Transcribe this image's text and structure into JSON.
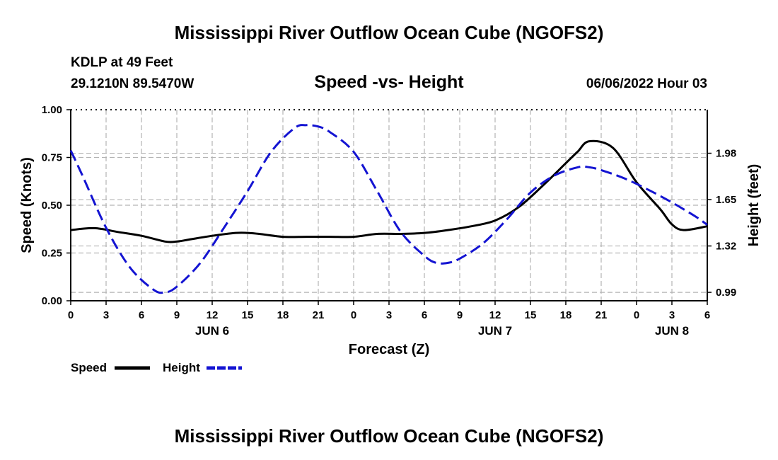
{
  "header": {
    "title": "Mississippi River Outflow Ocean Cube (NGOFS2)",
    "station": "KDLP at 49 Feet",
    "coords": "29.1210N  89.5470W",
    "date": "06/06/2022 Hour 03"
  },
  "footer": {
    "title": "Mississippi River Outflow Ocean Cube (NGOFS2)"
  },
  "chart_data": {
    "type": "line",
    "title": "Speed -vs- Height",
    "xlabel": "Forecast (Z)",
    "ylabel": "Speed (Knots)",
    "y2label": "Height (feet)",
    "x_range": [
      0,
      54
    ],
    "x_hours": [
      0,
      3,
      6,
      9,
      12,
      15,
      18,
      21,
      24,
      27,
      30,
      33,
      36,
      39,
      42,
      45,
      48,
      51,
      54
    ],
    "x_tick_labels": [
      "0",
      "3",
      "6",
      "9",
      "12",
      "15",
      "18",
      "21",
      "0",
      "3",
      "6",
      "9",
      "12",
      "15",
      "18",
      "21",
      "0",
      "3",
      "6"
    ],
    "date_labels": [
      {
        "hour": 12,
        "label": "JUN 6"
      },
      {
        "hour": 36,
        "label": "JUN 7"
      },
      {
        "hour": 51,
        "label": "JUN 8"
      }
    ],
    "ylim": [
      0,
      1
    ],
    "y_ticks": [
      0,
      0.25,
      0.5,
      0.75,
      1
    ],
    "y_tick_labels": [
      "0.00",
      "0.25",
      "0.50",
      "0.75",
      "1.00"
    ],
    "y2lim": [
      0.93,
      2.29
    ],
    "y2_ticks": [
      0.99,
      1.32,
      1.65,
      1.98
    ],
    "y2_tick_labels": [
      "0.99",
      "1.32",
      "1.65",
      "1.98"
    ],
    "series": [
      {
        "name": "Speed",
        "axis": "left",
        "color": "#000000",
        "dash": "solid",
        "x": [
          0,
          2,
          4,
          6,
          8,
          9,
          10,
          12,
          14,
          15,
          16,
          18,
          20,
          22,
          24,
          26,
          28,
          30,
          32,
          34,
          36,
          38,
          40,
          42,
          43,
          44,
          46,
          48,
          50,
          51,
          52,
          54
        ],
        "y": [
          0.37,
          0.38,
          0.36,
          0.34,
          0.31,
          0.31,
          0.32,
          0.34,
          0.355,
          0.355,
          0.35,
          0.335,
          0.335,
          0.335,
          0.335,
          0.35,
          0.35,
          0.355,
          0.37,
          0.39,
          0.42,
          0.49,
          0.6,
          0.72,
          0.78,
          0.835,
          0.8,
          0.62,
          0.48,
          0.4,
          0.37,
          0.39
        ]
      },
      {
        "name": "Height",
        "axis": "right",
        "color": "#1414d2",
        "dash": "dashed",
        "x": [
          0,
          1,
          3,
          5,
          7,
          8,
          9,
          11,
          13,
          15,
          17,
          19,
          20,
          21,
          22,
          24,
          26,
          28,
          30,
          31,
          32,
          33,
          35,
          37,
          39,
          41,
          43,
          44,
          45,
          47,
          49,
          51,
          53,
          54
        ],
        "y": [
          2.0,
          1.82,
          1.45,
          1.17,
          1.01,
          0.99,
          1.03,
          1.2,
          1.45,
          1.71,
          1.99,
          2.16,
          2.18,
          2.17,
          2.13,
          1.99,
          1.71,
          1.42,
          1.25,
          1.2,
          1.2,
          1.23,
          1.34,
          1.51,
          1.7,
          1.82,
          1.88,
          1.88,
          1.86,
          1.8,
          1.72,
          1.63,
          1.53,
          1.47
        ]
      }
    ],
    "legend": [
      {
        "label": "Speed",
        "color": "#000000",
        "dash": "solid"
      },
      {
        "label": "Height",
        "color": "#1414d2",
        "dash": "dashed"
      }
    ]
  }
}
